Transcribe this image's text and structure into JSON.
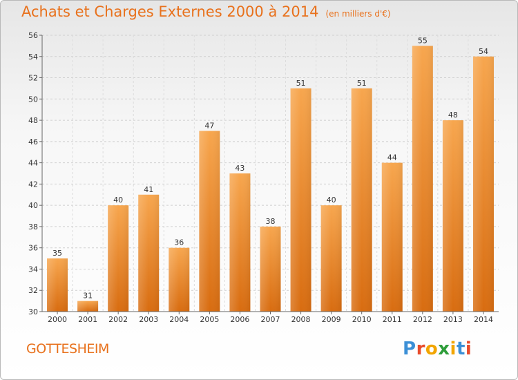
{
  "header": {
    "title": "Achats et Charges Externes 2000 à 2014",
    "subtitle": "(en milliers d'€)"
  },
  "footer": {
    "commune": "GOTTESHEIM",
    "logo": "Proxiti"
  },
  "colors": {
    "accent": "#e8711c",
    "bar_top": "#f7a64e",
    "bar_bottom": "#d86c10"
  },
  "chart_data": {
    "type": "bar",
    "title": "Achats et Charges Externes 2000 à 2014",
    "subtitle": "(en milliers d'€)",
    "categories": [
      "2000",
      "2001",
      "2002",
      "2003",
      "2004",
      "2005",
      "2006",
      "2007",
      "2008",
      "2009",
      "2010",
      "2011",
      "2012",
      "2013",
      "2014"
    ],
    "values": [
      35,
      31,
      40,
      41,
      36,
      47,
      43,
      38,
      51,
      40,
      51,
      44,
      55,
      48,
      54
    ],
    "ylim": [
      30,
      56
    ],
    "yticks": [
      30,
      32,
      34,
      36,
      38,
      40,
      42,
      44,
      46,
      48,
      50,
      52,
      54,
      56
    ],
    "grid": true
  }
}
